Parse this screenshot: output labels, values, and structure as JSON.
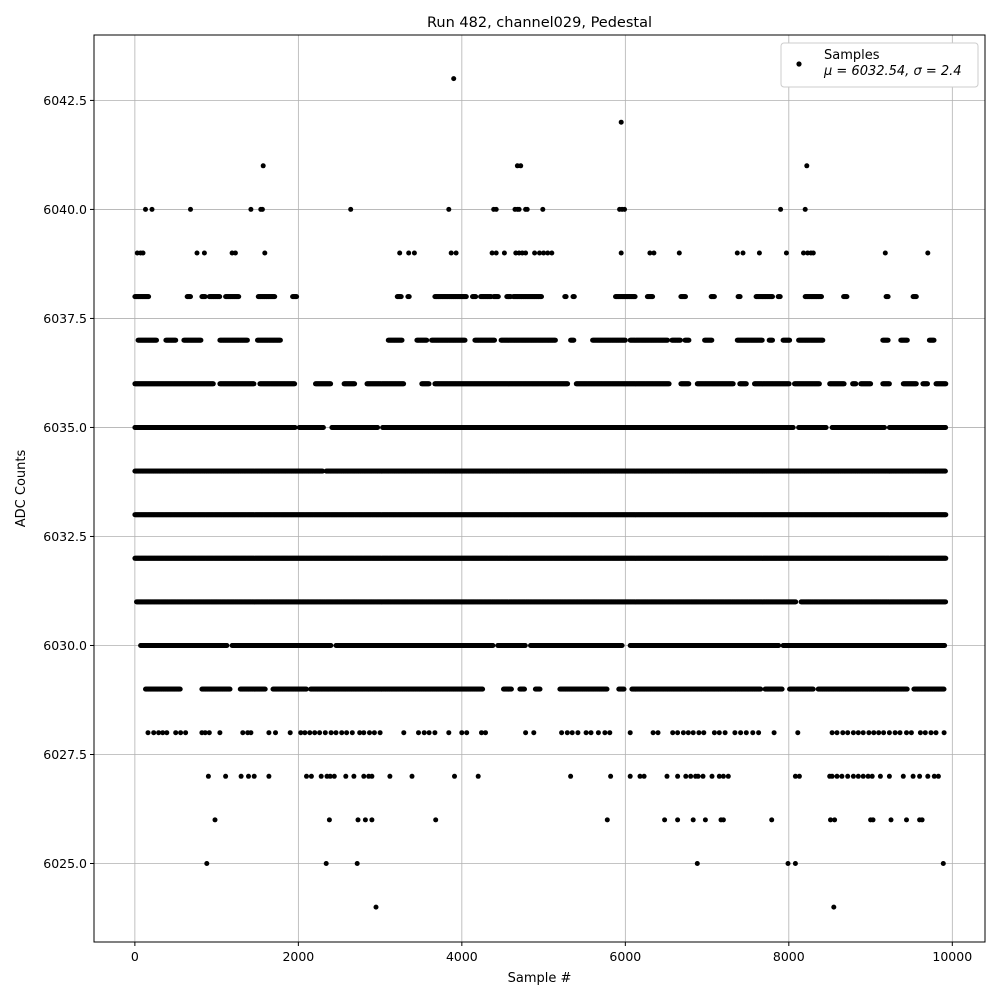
{
  "chart_data": {
    "type": "scatter",
    "title": "Run 482, channel029, Pedestal",
    "xlabel": "Sample #",
    "ylabel": "ADC Counts",
    "xlim": [
      -500,
      10400
    ],
    "ylim": [
      6023.2,
      6044.0
    ],
    "xticks": [
      0,
      2000,
      4000,
      6000,
      8000,
      10000
    ],
    "xtick_labels": [
      "0",
      "2000",
      "4000",
      "6000",
      "8000",
      "10000"
    ],
    "yticks": [
      6025.0,
      6027.5,
      6030.0,
      6032.5,
      6035.0,
      6037.5,
      6040.0,
      6042.5
    ],
    "ytick_labels": [
      "6025.0",
      "6027.5",
      "6030.0",
      "6032.5",
      "6035.0",
      "6037.5",
      "6040.0",
      "6042.5"
    ],
    "grid": true,
    "legend_position": "top-right",
    "marker_color": "#000000",
    "series": [
      {
        "name": "Samples",
        "stats_label": "μ = 6032.54, σ = 2.4",
        "n_samples": 9920,
        "mean": 6032.54,
        "std": 2.4,
        "levels": [
          {
            "y": 6024,
            "x": [
              2950,
              8550
            ]
          },
          {
            "y": 6025,
            "x": [
              880,
              2340,
              2720,
              6880,
              7990,
              8080,
              9890
            ]
          },
          {
            "y": 6026,
            "x": [
              980,
              2380,
              2730,
              2820,
              2900,
              3680,
              5780,
              6480,
              6640,
              6830,
              6980,
              7170,
              7200,
              7790,
              8510,
              8560,
              9000,
              9030,
              9250,
              9440,
              9600,
              9630
            ]
          },
          {
            "y": 6027,
            "x": [
              900,
              1110,
              1300,
              1390,
              1460,
              1640,
              2100,
              2160,
              2280,
              2350,
              2390,
              2440,
              2580,
              2680,
              2800,
              2860,
              2900,
              3120,
              3390,
              3910,
              4200,
              5330,
              5820,
              6060,
              6180,
              6230,
              6510,
              6640,
              6740,
              6800,
              6860,
              6890,
              6950,
              7060,
              7150,
              7200,
              7260,
              8080,
              8130,
              8500,
              8530,
              8590,
              8650,
              8720,
              8790,
              8850,
              8910,
              8970,
              9020,
              9120,
              9230,
              9400,
              9520,
              9600,
              9700,
              9780,
              9830
            ]
          },
          {
            "y": 6028,
            "x": [
              160,
              230,
              290,
              340,
              390,
              500,
              560,
              620,
              820,
              860,
              910,
              1040,
              1320,
              1380,
              1420,
              1640,
              1720,
              1900,
              2030,
              2080,
              2140,
              2200,
              2260,
              2330,
              2400,
              2460,
              2530,
              2590,
              2660,
              2750,
              2800,
              2870,
              2930,
              3000,
              3290,
              3470,
              3540,
              3600,
              3670,
              3840,
              4000,
              4060,
              4240,
              4290,
              4780,
              4880,
              5220,
              5290,
              5350,
              5420,
              5520,
              5580,
              5670,
              5750,
              5810,
              6060,
              6340,
              6400,
              6580,
              6640,
              6710,
              6770,
              6830,
              6900,
              6960,
              7090,
              7150,
              7220,
              7340,
              7410,
              7480,
              7560,
              7630,
              7820,
              8110,
              8530,
              8590,
              8660,
              8720,
              8790,
              8850,
              8910,
              8980,
              9040,
              9100,
              9160,
              9230,
              9300,
              9360,
              9440,
              9500,
              9610,
              9670,
              9740,
              9800,
              9900
            ]
          }
        ],
        "bands": [
          {
            "y": 6029,
            "segments": [
              [
                130,
                560
              ],
              [
                820,
                1170
              ],
              [
                1290,
                1600
              ],
              [
                1690,
                2100
              ],
              [
                2150,
                4260
              ],
              [
                4510,
                4610
              ],
              [
                4710,
                4770
              ],
              [
                4900,
                4960
              ],
              [
                5200,
                5780
              ],
              [
                5920,
                5990
              ],
              [
                6080,
                7660
              ],
              [
                7710,
                7920
              ],
              [
                8010,
                8300
              ],
              [
                8360,
                9450
              ],
              [
                9530,
                9900
              ]
            ]
          },
          {
            "y": 6030,
            "segments": [
              [
                70,
                1130
              ],
              [
                1190,
                2400
              ],
              [
                2460,
                4380
              ],
              [
                4440,
                4780
              ],
              [
                4840,
                5960
              ],
              [
                6060,
                7880
              ],
              [
                7930,
                9910
              ]
            ]
          },
          {
            "y": 6031,
            "segments": [
              [
                20,
                8090
              ],
              [
                8150,
                9920
              ]
            ]
          },
          {
            "y": 6032,
            "segments": [
              [
                0,
                9920
              ]
            ]
          },
          {
            "y": 6033,
            "segments": [
              [
                0,
                9920
              ]
            ]
          },
          {
            "y": 6034,
            "segments": [
              [
                0,
                2300
              ],
              [
                2340,
                9920
              ]
            ]
          },
          {
            "y": 6035,
            "segments": [
              [
                0,
                1960
              ],
              [
                2010,
                2310
              ],
              [
                2410,
                2970
              ],
              [
                3030,
                8060
              ],
              [
                8120,
                8460
              ],
              [
                8530,
                9170
              ],
              [
                9230,
                9920
              ]
            ]
          },
          {
            "y": 6036,
            "segments": [
              [
                0,
                960
              ],
              [
                1040,
                1460
              ],
              [
                1530,
                1960
              ],
              [
                2210,
                2400
              ],
              [
                2560,
                2690
              ],
              [
                2840,
                3290
              ],
              [
                3510,
                3600
              ],
              [
                3670,
                5300
              ],
              [
                5400,
                6540
              ],
              [
                6680,
                6780
              ],
              [
                6880,
                7320
              ],
              [
                7400,
                7480
              ],
              [
                7580,
                8010
              ],
              [
                8070,
                8380
              ],
              [
                8500,
                8680
              ],
              [
                8780,
                8820
              ],
              [
                8880,
                9000
              ],
              [
                9150,
                9230
              ],
              [
                9400,
                9560
              ],
              [
                9640,
                9700
              ],
              [
                9800,
                9920
              ]
            ]
          },
          {
            "y": 6037,
            "segments": [
              [
                40,
                270
              ],
              [
                380,
                500
              ],
              [
                600,
                810
              ],
              [
                1040,
                1380
              ],
              [
                1500,
                1780
              ],
              [
                3100,
                3270
              ],
              [
                3450,
                3570
              ],
              [
                3630,
                4040
              ],
              [
                4160,
                4400
              ],
              [
                4480,
                5150
              ],
              [
                5330,
                5370
              ],
              [
                5600,
                6000
              ],
              [
                6060,
                6520
              ],
              [
                6570,
                6680
              ],
              [
                6730,
                6780
              ],
              [
                6970,
                7060
              ],
              [
                7370,
                7680
              ],
              [
                7760,
                7800
              ],
              [
                7930,
                8010
              ],
              [
                8120,
                8420
              ],
              [
                9150,
                9220
              ],
              [
                9370,
                9450
              ],
              [
                9720,
                9780
              ]
            ]
          },
          {
            "y": 6038,
            "segments": [
              [
                0,
                170
              ],
              [
                640,
                680
              ],
              [
                820,
                860
              ],
              [
                910,
                1040
              ],
              [
                1110,
                1270
              ],
              [
                1510,
                1710
              ],
              [
                1930,
                1980
              ],
              [
                3210,
                3260
              ],
              [
                3340,
                3360
              ],
              [
                3670,
                4060
              ],
              [
                4130,
                4170
              ],
              [
                4230,
                4360
              ],
              [
                4390,
                4450
              ],
              [
                4550,
                4600
              ],
              [
                4630,
                4980
              ],
              [
                5260,
                5280
              ],
              [
                5360,
                5380
              ],
              [
                5880,
                6120
              ],
              [
                6270,
                6340
              ],
              [
                6680,
                6740
              ],
              [
                7050,
                7090
              ],
              [
                7380,
                7410
              ],
              [
                7600,
                7800
              ],
              [
                7870,
                7900
              ],
              [
                8200,
                8400
              ],
              [
                8670,
                8710
              ],
              [
                9190,
                9220
              ],
              [
                9520,
                9560
              ]
            ]
          }
        ],
        "points": [
          {
            "x": 3900,
            "y": 6043
          },
          {
            "x": 5950,
            "y": 6042
          },
          {
            "x": 1570,
            "y": 6041
          },
          {
            "x": 4680,
            "y": 6041
          },
          {
            "x": 4720,
            "y": 6041
          },
          {
            "x": 8220,
            "y": 6041
          },
          {
            "x": 130,
            "y": 6040
          },
          {
            "x": 210,
            "y": 6040
          },
          {
            "x": 680,
            "y": 6040
          },
          {
            "x": 1420,
            "y": 6040
          },
          {
            "x": 1540,
            "y": 6040
          },
          {
            "x": 1560,
            "y": 6040
          },
          {
            "x": 2640,
            "y": 6040
          },
          {
            "x": 3840,
            "y": 6040
          },
          {
            "x": 4390,
            "y": 6040
          },
          {
            "x": 4420,
            "y": 6040
          },
          {
            "x": 4650,
            "y": 6040
          },
          {
            "x": 4680,
            "y": 6040
          },
          {
            "x": 4700,
            "y": 6040
          },
          {
            "x": 4780,
            "y": 6040
          },
          {
            "x": 4800,
            "y": 6040
          },
          {
            "x": 4990,
            "y": 6040
          },
          {
            "x": 5930,
            "y": 6040
          },
          {
            "x": 5960,
            "y": 6040
          },
          {
            "x": 5990,
            "y": 6040
          },
          {
            "x": 7900,
            "y": 6040
          },
          {
            "x": 8200,
            "y": 6040
          },
          {
            "x": 30,
            "y": 6039
          },
          {
            "x": 70,
            "y": 6039
          },
          {
            "x": 100,
            "y": 6039
          },
          {
            "x": 760,
            "y": 6039
          },
          {
            "x": 850,
            "y": 6039
          },
          {
            "x": 1190,
            "y": 6039
          },
          {
            "x": 1230,
            "y": 6039
          },
          {
            "x": 1590,
            "y": 6039
          },
          {
            "x": 3240,
            "y": 6039
          },
          {
            "x": 3350,
            "y": 6039
          },
          {
            "x": 3420,
            "y": 6039
          },
          {
            "x": 3870,
            "y": 6039
          },
          {
            "x": 3930,
            "y": 6039
          },
          {
            "x": 4370,
            "y": 6039
          },
          {
            "x": 4420,
            "y": 6039
          },
          {
            "x": 4520,
            "y": 6039
          },
          {
            "x": 4660,
            "y": 6039
          },
          {
            "x": 4700,
            "y": 6039
          },
          {
            "x": 4740,
            "y": 6039
          },
          {
            "x": 4780,
            "y": 6039
          },
          {
            "x": 4890,
            "y": 6039
          },
          {
            "x": 4950,
            "y": 6039
          },
          {
            "x": 5000,
            "y": 6039
          },
          {
            "x": 5050,
            "y": 6039
          },
          {
            "x": 5100,
            "y": 6039
          },
          {
            "x": 5950,
            "y": 6039
          },
          {
            "x": 6300,
            "y": 6039
          },
          {
            "x": 6350,
            "y": 6039
          },
          {
            "x": 6660,
            "y": 6039
          },
          {
            "x": 7370,
            "y": 6039
          },
          {
            "x": 7440,
            "y": 6039
          },
          {
            "x": 7640,
            "y": 6039
          },
          {
            "x": 7970,
            "y": 6039
          },
          {
            "x": 8180,
            "y": 6039
          },
          {
            "x": 8230,
            "y": 6039
          },
          {
            "x": 8270,
            "y": 6039
          },
          {
            "x": 8300,
            "y": 6039
          },
          {
            "x": 9180,
            "y": 6039
          },
          {
            "x": 9700,
            "y": 6039
          }
        ]
      }
    ]
  }
}
